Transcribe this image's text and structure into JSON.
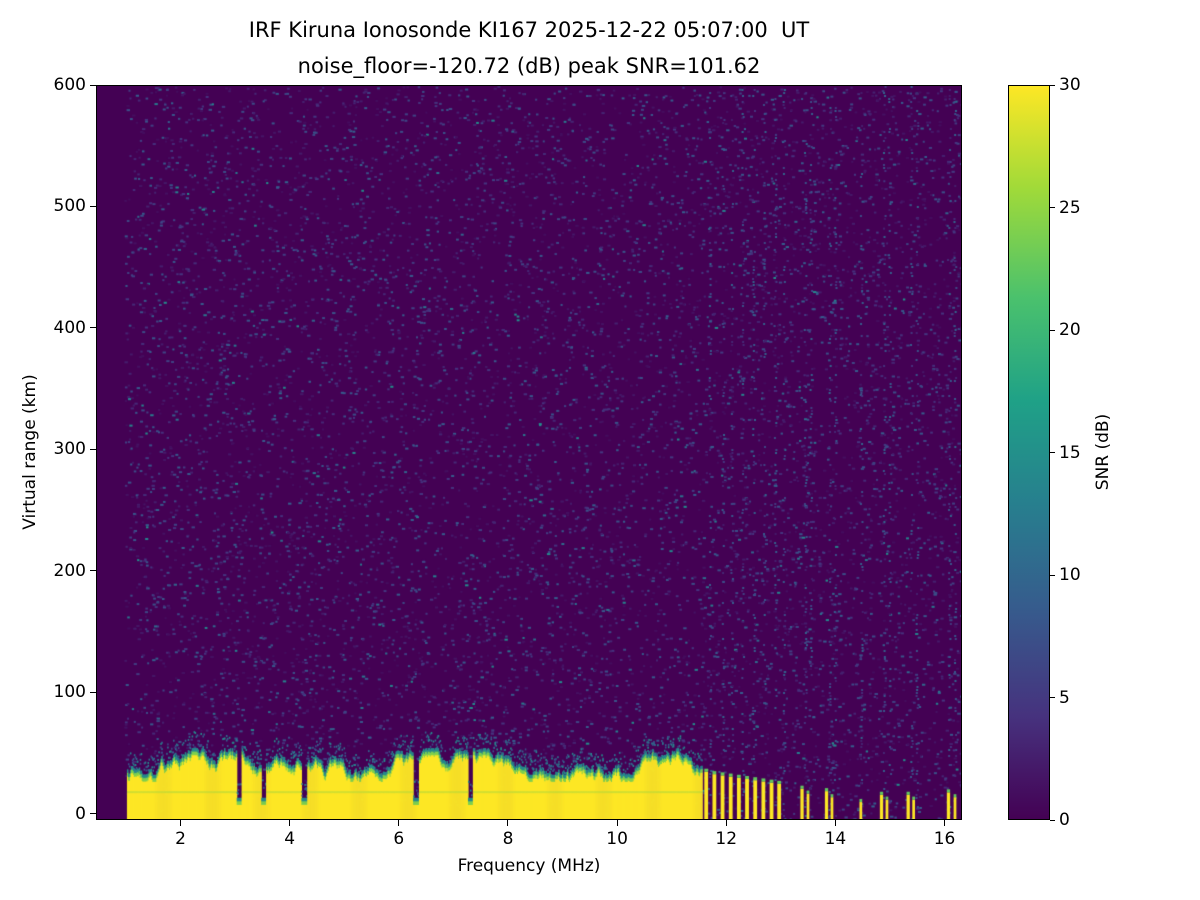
{
  "chart_data": {
    "type": "heatmap",
    "title": "IRF Kiruna Ionosonde KI167 2025-12-22 05:07:00  UT",
    "subtitle": "noise_floor=-120.72 (dB) peak SNR=101.62",
    "xlabel": "Frequency (MHz)",
    "ylabel": "Virtual range (km)",
    "xlim": [
      0.45,
      16.32
    ],
    "ylim": [
      -5,
      600
    ],
    "xticks": [
      2,
      4,
      6,
      8,
      10,
      12,
      14,
      16
    ],
    "yticks": [
      0,
      100,
      200,
      300,
      400,
      500,
      600
    ],
    "station": "IRF Kiruna Ionosonde KI167",
    "timestamp_ut": "2025-12-22 05:07:00",
    "noise_floor_db": -120.72,
    "peak_snr_db": 101.62,
    "colorbar": {
      "label": "SNR (dB)",
      "min": 0,
      "max": 30,
      "ticks": [
        0,
        5,
        10,
        15,
        20,
        25,
        30
      ]
    },
    "colormap": {
      "name": "viridis",
      "stops": [
        {
          "t": 0.0,
          "color": "#440154"
        },
        {
          "t": 0.14,
          "color": "#46327e"
        },
        {
          "t": 0.29,
          "color": "#365c8d"
        },
        {
          "t": 0.43,
          "color": "#277f8e"
        },
        {
          "t": 0.57,
          "color": "#1fa187"
        },
        {
          "t": 0.71,
          "color": "#4ac16d"
        },
        {
          "t": 0.86,
          "color": "#a0da39"
        },
        {
          "t": 1.0,
          "color": "#fde725"
        }
      ]
    },
    "features": {
      "background_snr_db": 0,
      "speckle": {
        "count": 9500,
        "f_min": 0.95,
        "max_db": 15
      },
      "ground_echo": {
        "f_start": 1.0,
        "f_end": 11.55,
        "step_mhz": 0.018,
        "top_km_start": 34,
        "top_km_min": 26,
        "top_km_max": 48,
        "notch_top_km": 7,
        "inner_line_km": 18,
        "notches": [
          {
            "f": 3.05,
            "w": 0.09
          },
          {
            "f": 3.5,
            "w": 0.09
          },
          {
            "f": 4.25,
            "w": 0.1
          },
          {
            "f": 6.3,
            "w": 0.12
          },
          {
            "f": 7.3,
            "w": 0.1
          }
        ]
      },
      "stripes": [
        {
          "f": 11.64,
          "w": 0.07,
          "top_km": 34
        },
        {
          "f": 11.79,
          "w": 0.07,
          "top_km": 32
        },
        {
          "f": 11.94,
          "w": 0.07,
          "top_km": 31
        },
        {
          "f": 12.09,
          "w": 0.07,
          "top_km": 30
        },
        {
          "f": 12.24,
          "w": 0.07,
          "top_km": 29
        },
        {
          "f": 12.39,
          "w": 0.07,
          "top_km": 28
        },
        {
          "f": 12.54,
          "w": 0.07,
          "top_km": 27
        },
        {
          "f": 12.69,
          "w": 0.07,
          "top_km": 26
        },
        {
          "f": 12.84,
          "w": 0.07,
          "top_km": 25
        },
        {
          "f": 12.98,
          "w": 0.07,
          "top_km": 24
        },
        {
          "f": 13.4,
          "w": 0.06,
          "top_km": 20
        },
        {
          "f": 13.51,
          "w": 0.05,
          "top_km": 16
        },
        {
          "f": 13.85,
          "w": 0.06,
          "top_km": 18
        },
        {
          "f": 13.95,
          "w": 0.05,
          "top_km": 13
        },
        {
          "f": 14.48,
          "w": 0.05,
          "top_km": 9
        },
        {
          "f": 14.86,
          "w": 0.06,
          "top_km": 15
        },
        {
          "f": 14.96,
          "w": 0.05,
          "top_km": 11
        },
        {
          "f": 15.35,
          "w": 0.06,
          "top_km": 15
        },
        {
          "f": 15.45,
          "w": 0.05,
          "top_km": 11
        },
        {
          "f": 16.09,
          "w": 0.06,
          "top_km": 17
        },
        {
          "f": 16.21,
          "w": 0.05,
          "top_km": 13
        }
      ],
      "rfi_columns": {
        "freqs": [
          11.7,
          11.94,
          12.1,
          12.3,
          12.5,
          12.7,
          12.9,
          13.06,
          13.45,
          13.55,
          13.9,
          14.0,
          14.48,
          14.9,
          15.0,
          15.4,
          15.5,
          16.1,
          16.2
        ],
        "density": 0.22
      }
    }
  }
}
